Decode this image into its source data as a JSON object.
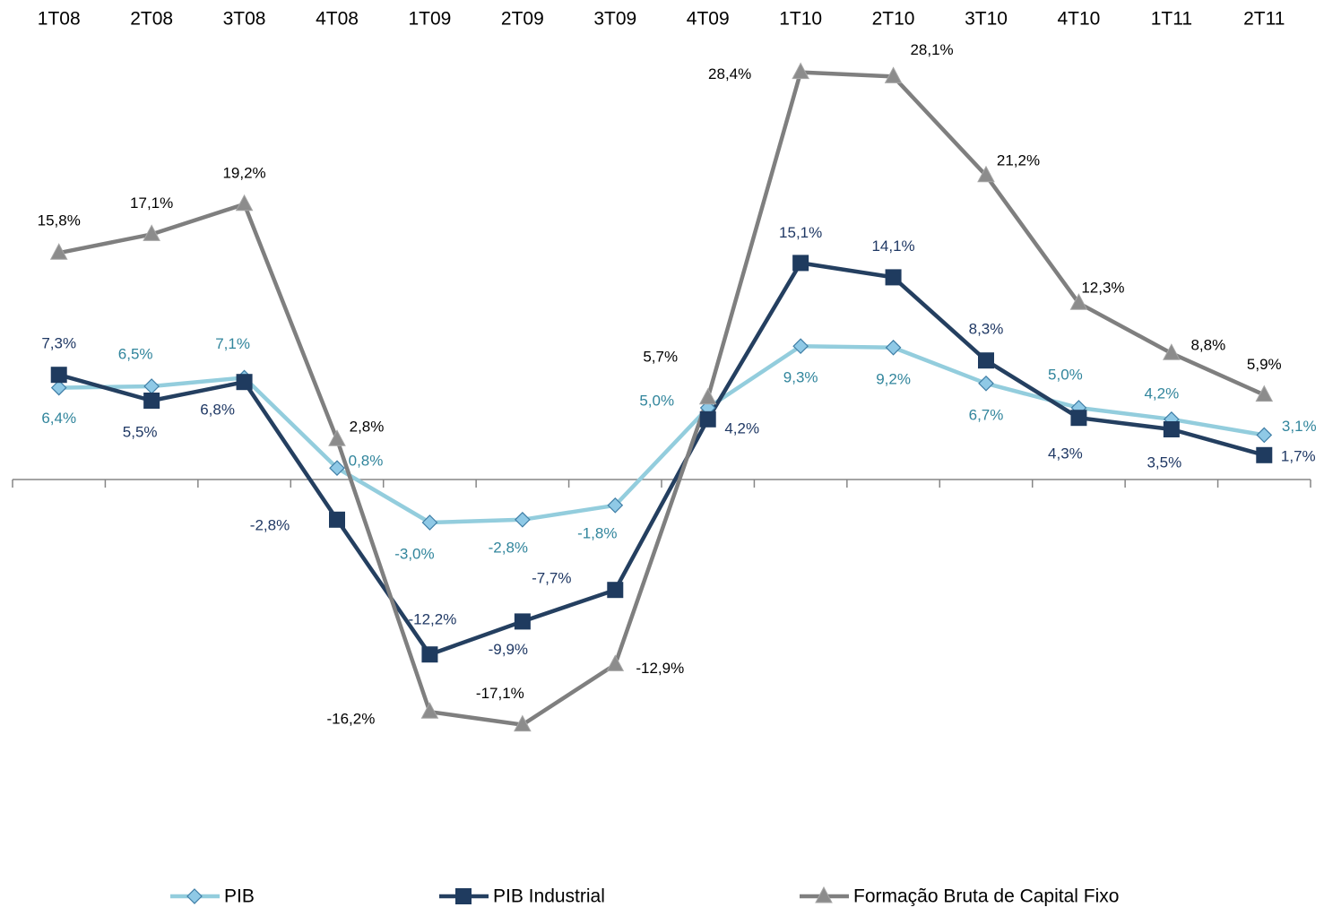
{
  "chart_data": {
    "type": "line",
    "categories": [
      "1T08",
      "2T08",
      "3T08",
      "4T08",
      "1T09",
      "2T09",
      "3T09",
      "4T09",
      "1T10",
      "2T10",
      "3T10",
      "4T10",
      "1T11",
      "2T11"
    ],
    "ylim": [
      -23,
      30
    ],
    "legend": "bottom",
    "series": [
      {
        "name": "PIB",
        "color": "#93cddd",
        "marker": "diamond",
        "marker_color": "#8fc9e6",
        "label_color": "#31859c",
        "values": [
          6.4,
          6.5,
          7.1,
          0.8,
          -3.0,
          -2.8,
          -1.8,
          5.0,
          9.3,
          9.2,
          6.7,
          5.0,
          4.2,
          3.1
        ],
        "value_labels": [
          "6,4%",
          "6,5%",
          "7,1%",
          "0,8%",
          "-3,0%",
          "-2,8%",
          "-1,8%",
          "5,0%",
          "9,3%",
          "9,2%",
          "6,7%",
          "5,0%",
          "4,2%",
          "3,1%"
        ]
      },
      {
        "name": "PIB Industrial",
        "color": "#243f60",
        "marker": "square",
        "marker_color": "#1f3b5f",
        "label_color": "#1f3864",
        "values": [
          7.3,
          5.5,
          6.8,
          -2.8,
          -12.2,
          -9.9,
          -7.7,
          4.2,
          15.1,
          14.1,
          8.3,
          4.3,
          3.5,
          1.7
        ],
        "value_labels": [
          "7,3%",
          "5,5%",
          "6,8%",
          "-2,8%",
          "-12,2%",
          "-9,9%",
          "-7,7%",
          "4,2%",
          "15,1%",
          "14,1%",
          "8,3%",
          "4,3%",
          "3,5%",
          "1,7%"
        ]
      },
      {
        "name": "Formação Bruta de Capital Fixo",
        "color": "#7f7f7f",
        "marker": "triangle",
        "marker_color": "#8c8c8c",
        "label_color": "#000000",
        "values": [
          15.8,
          17.1,
          19.2,
          2.8,
          -16.2,
          -17.1,
          -12.9,
          5.7,
          28.4,
          28.1,
          21.2,
          12.3,
          8.8,
          5.9
        ],
        "value_labels": [
          "15,8%",
          "17,1%",
          "19,2%",
          "2,8%",
          "-16,2%",
          "-17,1%",
          "-12,9%",
          "5,7%",
          "28,4%",
          "28,1%",
          "21,2%",
          "12,3%",
          "8,8%",
          "5,9%"
        ]
      }
    ]
  }
}
